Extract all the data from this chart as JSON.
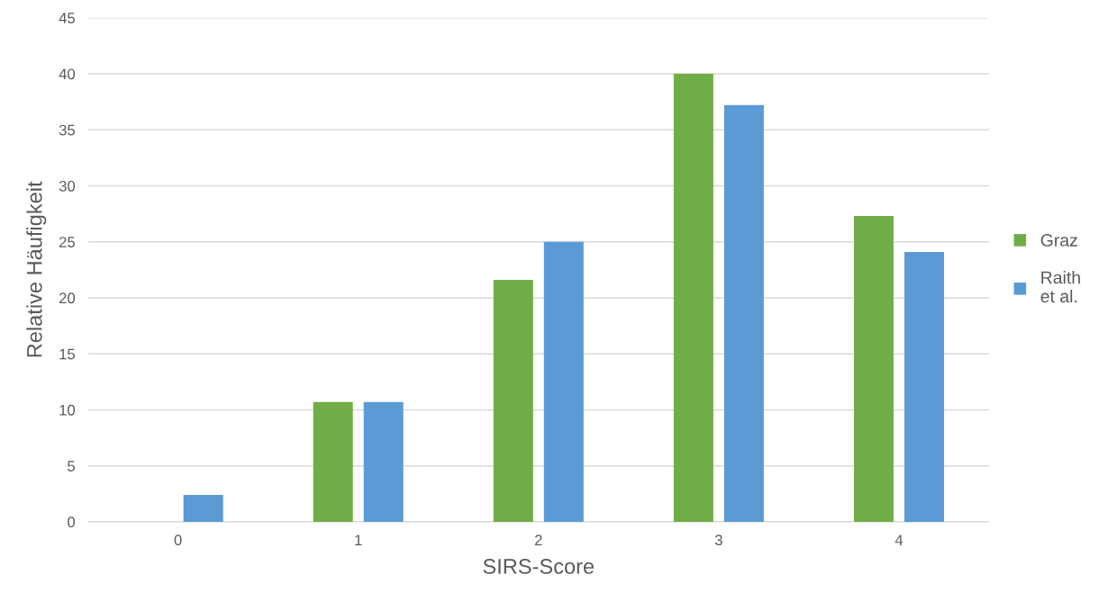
{
  "chart_data": {
    "type": "bar",
    "xlabel": "SIRS-Score",
    "ylabel": "Relative Häufigkeit",
    "categories": [
      "0",
      "1",
      "2",
      "3",
      "4"
    ],
    "series": [
      {
        "name": "Graz",
        "color": "#70ad47",
        "values": [
          0,
          10.7,
          21.6,
          40,
          27.3
        ]
      },
      {
        "name": "Raith\net al.",
        "color": "#5b9bd5",
        "values": [
          2.4,
          10.7,
          25.0,
          37.2,
          24.1
        ]
      }
    ],
    "ylim": [
      0,
      45
    ],
    "yticks": [
      0,
      5,
      10,
      15,
      20,
      25,
      30,
      35,
      40,
      45
    ],
    "grid": "y",
    "legend": "right"
  }
}
